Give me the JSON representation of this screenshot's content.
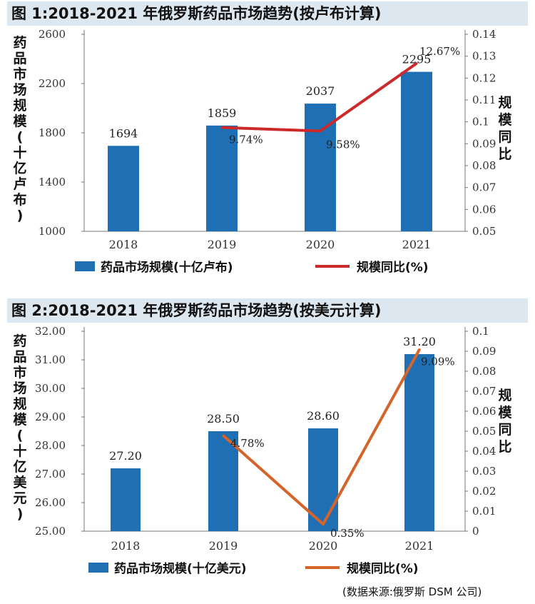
{
  "figures": [
    {
      "title": "图 1:2018-2021 年俄罗斯药品市场趋势(按卢布计算)"
    },
    {
      "title": "图 2:2018-2021 年俄罗斯药品市场趋势(按美元计算)"
    }
  ],
  "source_note": "(数据来源:俄罗斯 DSM 公司)",
  "chart_data": [
    {
      "type": "bar+line",
      "title": "图 1:2018-2021 年俄罗斯药品市场趋势(按卢布计算)",
      "categories": [
        "2018",
        "2019",
        "2020",
        "2021"
      ],
      "bar_series": {
        "name": "药品市场规模(十亿卢布)",
        "values": [
          1694,
          1859,
          2037,
          2295
        ],
        "labels": [
          "1694",
          "1859",
          "2037",
          "2295"
        ],
        "color": "#1f6fb5"
      },
      "line_series": {
        "name": "规模同比(%)",
        "values": [
          null,
          0.0974,
          0.0958,
          0.1267
        ],
        "labels": [
          "",
          "9.74%",
          "9.58%",
          "12.67%"
        ],
        "color": "#cc2a2a"
      },
      "ylabel": "药品市场规模(十亿卢布)",
      "y2label": "规模同比",
      "ylim": [
        1000,
        2600
      ],
      "yticks": [
        "1000",
        "1400",
        "1800",
        "2200",
        "2600"
      ],
      "y2lim": [
        0.05,
        0.14
      ],
      "y2ticks": [
        "0.05",
        "0.06",
        "0.07",
        "0.08",
        "0.09",
        "0.1",
        "0.11",
        "0.12",
        "0.13",
        "0.14"
      ],
      "legend": "bottom"
    },
    {
      "type": "bar+line",
      "title": "图 2:2018-2021 年俄罗斯药品市场趋势(按美元计算)",
      "categories": [
        "2018",
        "2019",
        "2020",
        "2021"
      ],
      "bar_series": {
        "name": "药品市场规模(十亿美元)",
        "values": [
          27.2,
          28.5,
          28.6,
          31.2
        ],
        "labels": [
          "27.20",
          "28.50",
          "28.60",
          "31.20"
        ],
        "color": "#1f6fb5"
      },
      "line_series": {
        "name": "规模同比(%)",
        "values": [
          null,
          0.0478,
          0.0035,
          0.0909
        ],
        "labels": [
          "",
          "4.78%",
          "0.35%",
          "9.09%"
        ],
        "color": "#d4642a"
      },
      "ylabel": "药品市场规模(十亿美元)",
      "y2label": "规模同比",
      "ylim": [
        25,
        32
      ],
      "yticks": [
        "25.00",
        "26.00",
        "27.00",
        "28.00",
        "29.00",
        "30.00",
        "31.00",
        "32.00"
      ],
      "y2lim": [
        0,
        0.1
      ],
      "y2ticks": [
        "0",
        "0.01",
        "0.02",
        "0.03",
        "0.04",
        "0.05",
        "0.06",
        "0.07",
        "0.08",
        "0.09",
        "0.1"
      ],
      "legend": "bottom"
    }
  ]
}
